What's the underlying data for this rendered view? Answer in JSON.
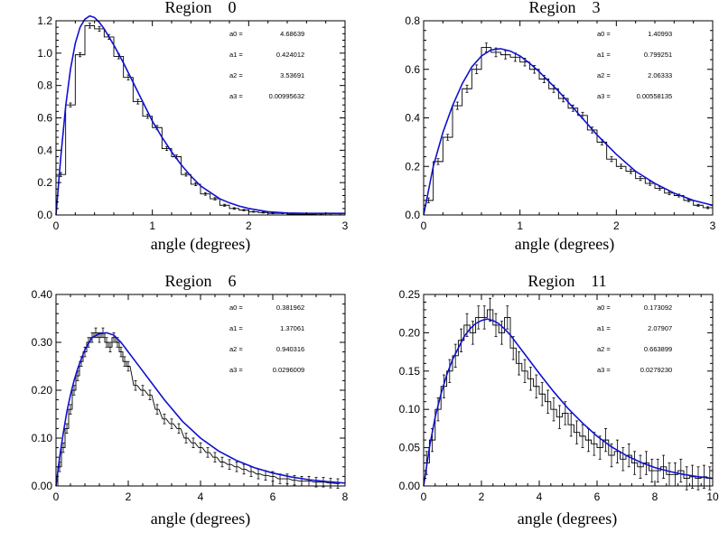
{
  "chart_data": [
    {
      "type": "histogram-fit",
      "title": "Region    0",
      "xlabel": "angle (degrees)",
      "xlim": [
        0,
        3
      ],
      "ylim": [
        0,
        1.2
      ],
      "xticks": [
        "0",
        "1",
        "2",
        "3"
      ],
      "yticks": [
        "0.0",
        "0.2",
        "0.4",
        "0.6",
        "0.8",
        "1.0",
        "1.2"
      ],
      "params": [
        {
          "name": "a0 =",
          "value": "4.68639"
        },
        {
          "name": "a1 =",
          "value": "0.424012"
        },
        {
          "name": "a2 =",
          "value": "3.53691"
        },
        {
          "name": "a3 =",
          "value": "0.00995632"
        }
      ],
      "fit_color": "#1010d0",
      "hist_color": "#000000",
      "bin_width": 0.1,
      "hist": [
        0.25,
        0.68,
        0.99,
        1.17,
        1.15,
        1.1,
        0.98,
        0.85,
        0.7,
        0.61,
        0.54,
        0.41,
        0.36,
        0.25,
        0.19,
        0.13,
        0.1,
        0.06,
        0.04,
        0.03,
        0.02,
        0.015,
        0.01,
        0.01,
        0.005,
        0.005,
        0.003,
        0.002,
        0.001,
        0.001
      ],
      "err": [
        0.012,
        0.012,
        0.012,
        0.015,
        0.015,
        0.015,
        0.015,
        0.015,
        0.014,
        0.013,
        0.013,
        0.012,
        0.011,
        0.01,
        0.009,
        0.008,
        0.007,
        0.006,
        0.005,
        0.004,
        0.003,
        0.003,
        0.002,
        0.002,
        0.002,
        0.002,
        0.001,
        0.001,
        0.001,
        0.001
      ],
      "fit_x": [
        0,
        0.05,
        0.1,
        0.15,
        0.2,
        0.25,
        0.3,
        0.35,
        0.4,
        0.45,
        0.5,
        0.6,
        0.7,
        0.8,
        0.9,
        1.0,
        1.1,
        1.2,
        1.3,
        1.4,
        1.5,
        1.6,
        1.7,
        1.8,
        1.9,
        2.0,
        2.2,
        2.4,
        2.6,
        2.8,
        3.0
      ],
      "fit_y": [
        0.0,
        0.36,
        0.67,
        0.9,
        1.06,
        1.16,
        1.21,
        1.23,
        1.22,
        1.19,
        1.15,
        1.05,
        0.94,
        0.82,
        0.7,
        0.58,
        0.48,
        0.39,
        0.31,
        0.24,
        0.18,
        0.14,
        0.1,
        0.075,
        0.055,
        0.04,
        0.02,
        0.012,
        0.01,
        0.01,
        0.01
      ]
    },
    {
      "type": "histogram-fit",
      "title": "Region    3",
      "xlabel": "angle (degrees)",
      "xlim": [
        0,
        3
      ],
      "ylim": [
        0,
        0.8
      ],
      "xticks": [
        "0",
        "1",
        "2",
        "3"
      ],
      "yticks": [
        "0.0",
        "0.2",
        "0.4",
        "0.6",
        "0.8"
      ],
      "params": [
        {
          "name": "a0 =",
          "value": "1.40993"
        },
        {
          "name": "a1 =",
          "value": "0.799251"
        },
        {
          "name": "a2 =",
          "value": "2.06333"
        },
        {
          "name": "a3 =",
          "value": "0.00558135"
        }
      ],
      "fit_color": "#1010d0",
      "hist_color": "#000000",
      "bin_width": 0.1,
      "hist": [
        0.06,
        0.22,
        0.32,
        0.45,
        0.52,
        0.6,
        0.69,
        0.67,
        0.66,
        0.65,
        0.63,
        0.6,
        0.56,
        0.52,
        0.48,
        0.44,
        0.41,
        0.35,
        0.3,
        0.23,
        0.2,
        0.18,
        0.15,
        0.13,
        0.11,
        0.09,
        0.08,
        0.06,
        0.04,
        0.03
      ],
      "err": [
        0.01,
        0.012,
        0.012,
        0.015,
        0.015,
        0.018,
        0.018,
        0.018,
        0.017,
        0.017,
        0.016,
        0.016,
        0.015,
        0.015,
        0.014,
        0.013,
        0.013,
        0.012,
        0.011,
        0.01,
        0.009,
        0.009,
        0.008,
        0.008,
        0.007,
        0.006,
        0.006,
        0.005,
        0.004,
        0.004
      ],
      "fit_x": [
        0,
        0.1,
        0.2,
        0.3,
        0.4,
        0.5,
        0.6,
        0.7,
        0.8,
        0.9,
        1.0,
        1.1,
        1.2,
        1.3,
        1.4,
        1.5,
        1.6,
        1.7,
        1.8,
        1.9,
        2.0,
        2.2,
        2.4,
        2.6,
        2.8,
        3.0
      ],
      "fit_y": [
        0.0,
        0.2,
        0.34,
        0.45,
        0.54,
        0.61,
        0.655,
        0.68,
        0.685,
        0.675,
        0.655,
        0.625,
        0.59,
        0.55,
        0.51,
        0.465,
        0.42,
        0.375,
        0.33,
        0.29,
        0.25,
        0.18,
        0.13,
        0.09,
        0.06,
        0.04
      ]
    },
    {
      "type": "histogram-fit",
      "title": "Region    6",
      "xlabel": "angle (degrees)",
      "xlim": [
        0,
        8
      ],
      "ylim": [
        0,
        0.4
      ],
      "xticks": [
        "0",
        "2",
        "4",
        "6",
        "8"
      ],
      "yticks": [
        "0.00",
        "0.10",
        "0.20",
        "0.30",
        "0.40"
      ],
      "params": [
        {
          "name": "a0 =",
          "value": "0.381962"
        },
        {
          "name": "a1 =",
          "value": "1.37061"
        },
        {
          "name": "a2 =",
          "value": "0.940316"
        },
        {
          "name": "a3 =",
          "value": "0.0296009"
        }
      ],
      "fit_color": "#1010d0",
      "hist_color": "#000000",
      "bin_width": 0.1,
      "hist_x": [
        0.1,
        0.2,
        0.3,
        0.4,
        0.5,
        0.6,
        0.7,
        0.8,
        0.9,
        1.0,
        1.1,
        1.2,
        1.3,
        1.4,
        1.5,
        1.6,
        1.7,
        1.8,
        1.9,
        2.0,
        2.2,
        2.4,
        2.6,
        2.8,
        3.0,
        3.2,
        3.4,
        3.6,
        3.8,
        4.0,
        4.2,
        4.4,
        4.6,
        4.8,
        5.0,
        5.2,
        5.4,
        5.6,
        5.8,
        6.0,
        6.2,
        6.4,
        6.6,
        6.8,
        7.0,
        7.2,
        7.4,
        7.6,
        7.8
      ],
      "hist": [
        0.04,
        0.08,
        0.12,
        0.16,
        0.2,
        0.23,
        0.26,
        0.28,
        0.3,
        0.31,
        0.32,
        0.31,
        0.32,
        0.3,
        0.29,
        0.31,
        0.3,
        0.28,
        0.26,
        0.25,
        0.21,
        0.2,
        0.19,
        0.16,
        0.14,
        0.13,
        0.12,
        0.1,
        0.09,
        0.08,
        0.07,
        0.06,
        0.05,
        0.045,
        0.04,
        0.035,
        0.03,
        0.025,
        0.022,
        0.02,
        0.015,
        0.015,
        0.012,
        0.01,
        0.01,
        0.008,
        0.008,
        0.006,
        0.005
      ],
      "err": 0.01,
      "fit_x": [
        0,
        0.1,
        0.2,
        0.3,
        0.4,
        0.5,
        0.6,
        0.8,
        1.0,
        1.2,
        1.4,
        1.6,
        1.8,
        2.0,
        2.2,
        2.4,
        2.6,
        2.8,
        3.0,
        3.5,
        4.0,
        4.5,
        5.0,
        5.5,
        6.0,
        6.5,
        7.0,
        7.5,
        8.0
      ],
      "fit_y": [
        0.0,
        0.06,
        0.11,
        0.155,
        0.19,
        0.22,
        0.245,
        0.285,
        0.31,
        0.318,
        0.32,
        0.315,
        0.3,
        0.28,
        0.26,
        0.24,
        0.22,
        0.2,
        0.18,
        0.135,
        0.1,
        0.073,
        0.053,
        0.038,
        0.027,
        0.019,
        0.013,
        0.009,
        0.006
      ]
    },
    {
      "type": "histogram-fit",
      "title": "Region    11",
      "xlabel": "angle (degrees)",
      "xlim": [
        0,
        10
      ],
      "ylim": [
        0,
        0.25
      ],
      "xticks": [
        "0",
        "2",
        "4",
        "6",
        "8",
        "10"
      ],
      "yticks": [
        "0.00",
        "0.05",
        "0.10",
        "0.15",
        "0.20",
        "0.25"
      ],
      "params": [
        {
          "name": "a0 =",
          "value": "0.173092"
        },
        {
          "name": "a1 =",
          "value": "2.07907"
        },
        {
          "name": "a2 =",
          "value": "0.663899"
        },
        {
          "name": "a3 =",
          "value": "0.0279230"
        }
      ],
      "fit_color": "#1010d0",
      "hist_color": "#000000",
      "bin_width": 0.2,
      "hist_x": [
        0.1,
        0.3,
        0.5,
        0.7,
        0.9,
        1.1,
        1.3,
        1.5,
        1.7,
        1.9,
        2.1,
        2.3,
        2.5,
        2.7,
        2.9,
        3.1,
        3.3,
        3.5,
        3.7,
        3.9,
        4.1,
        4.3,
        4.5,
        4.7,
        4.9,
        5.1,
        5.3,
        5.5,
        5.7,
        5.9,
        6.1,
        6.3,
        6.5,
        6.7,
        6.9,
        7.1,
        7.3,
        7.5,
        7.7,
        7.9,
        8.1,
        8.3,
        8.5,
        8.7,
        8.9,
        9.1,
        9.3,
        9.5,
        9.7,
        9.9
      ],
      "hist": [
        0.03,
        0.06,
        0.1,
        0.13,
        0.15,
        0.17,
        0.19,
        0.21,
        0.2,
        0.22,
        0.22,
        0.23,
        0.21,
        0.2,
        0.22,
        0.18,
        0.16,
        0.15,
        0.14,
        0.13,
        0.12,
        0.11,
        0.1,
        0.09,
        0.095,
        0.08,
        0.07,
        0.065,
        0.06,
        0.055,
        0.05,
        0.06,
        0.04,
        0.045,
        0.035,
        0.04,
        0.03,
        0.025,
        0.03,
        0.02,
        0.02,
        0.025,
        0.015,
        0.015,
        0.02,
        0.01,
        0.012,
        0.01,
        0.012,
        0.01
      ],
      "err": 0.015,
      "fit_x": [
        0,
        0.2,
        0.4,
        0.6,
        0.8,
        1.0,
        1.2,
        1.4,
        1.6,
        1.8,
        2.0,
        2.2,
        2.4,
        2.6,
        2.8,
        3.0,
        3.5,
        4.0,
        4.5,
        5.0,
        5.5,
        6.0,
        6.5,
        7.0,
        7.5,
        8.0,
        8.5,
        9.0,
        9.5,
        10.0
      ],
      "fit_y": [
        0.0,
        0.05,
        0.09,
        0.12,
        0.145,
        0.165,
        0.18,
        0.195,
        0.205,
        0.212,
        0.216,
        0.218,
        0.216,
        0.212,
        0.205,
        0.197,
        0.172,
        0.147,
        0.123,
        0.101,
        0.082,
        0.065,
        0.051,
        0.04,
        0.031,
        0.024,
        0.019,
        0.015,
        0.012,
        0.01
      ]
    }
  ]
}
